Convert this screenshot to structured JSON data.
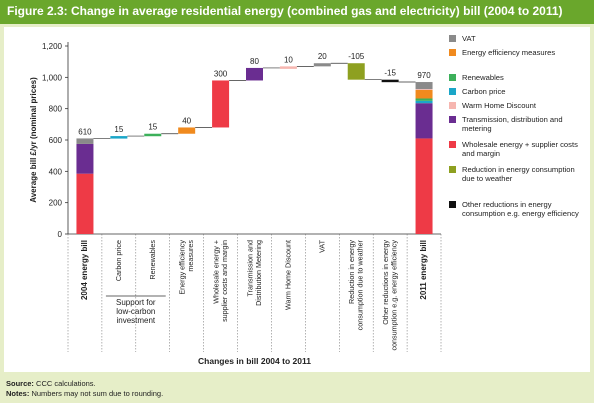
{
  "header": {
    "title": "Figure 2.3: Change in average residential energy (combined gas and electricity) bill (2004 to 2011)"
  },
  "footer": {
    "source_label": "Source:",
    "source_text": "CCC calculations.",
    "notes_label": "Notes:",
    "notes_text": "Numbers may not sum due to rounding."
  },
  "chart_data": {
    "type": "bar",
    "subtype": "waterfall",
    "ylabel": "Average bill £/yr (nominal prices)",
    "xlabel": "Changes in bill 2004 to 2011",
    "ylim": [
      0,
      1200
    ],
    "yticks": [
      "0",
      "200",
      "400",
      "600",
      "800",
      "1,000",
      "1,200"
    ],
    "group_label": "Support for low-carbon investment",
    "categories": [
      "2004 energy bill",
      "Carbon price",
      "Renewables",
      "Energy efficiency measures",
      "Wholesale energy + supplier costs and margin",
      "Transmission and Distribution Metering",
      "Warm Home Discount",
      "VAT",
      "Reduction in energy consumption due to weather",
      "Other reductions in energy consumption e.g. energy efficiency",
      "2011 energy bill"
    ],
    "value_labels": [
      "610",
      "15",
      "15",
      "40",
      "300",
      "80",
      "10",
      "20",
      "-105",
      "-15",
      "970"
    ],
    "changes": [
      null,
      15,
      15,
      40,
      300,
      80,
      10,
      20,
      -105,
      -15,
      null
    ],
    "change_colors": [
      "",
      "#1aa6c8",
      "#3cb05a",
      "#f08a1e",
      "#ee3a46",
      "#6a2d91",
      "#f6b6b0",
      "#8a8a8a",
      "#8ea020",
      "#111111",
      ""
    ],
    "totals": {
      "2004 energy bill": [
        {
          "component": "Wholesale energy + supplier costs and margin",
          "value": 385
        },
        {
          "component": "Transmission, distribution and metering",
          "value": 190
        },
        {
          "component": "VAT",
          "value": 35
        }
      ],
      "2011 energy bill": [
        {
          "component": "Wholesale energy + supplier costs and margin",
          "value": 610
        },
        {
          "component": "Transmission, distribution and metering",
          "value": 225
        },
        {
          "component": "Carbon price",
          "value": 15
        },
        {
          "component": "Renewables",
          "value": 15
        },
        {
          "component": "Energy efficiency measures",
          "value": 55
        },
        {
          "component": "Warm Home Discount",
          "value": 5
        },
        {
          "component": "VAT",
          "value": 45
        }
      ]
    },
    "legend": [
      {
        "label": "VAT",
        "color": "#8a8a8a"
      },
      {
        "label": "Energy efficiency measures",
        "color": "#f08a1e"
      },
      {
        "label": "Renewables",
        "color": "#3cb05a"
      },
      {
        "label": "Carbon price",
        "color": "#1aa6c8"
      },
      {
        "label": "Warm Home Discount",
        "color": "#f6b6b0"
      },
      {
        "label": "Transmission, distribution and metering",
        "color": "#6a2d91"
      },
      {
        "label": "Wholesale energy + supplier costs and margin",
        "color": "#ee3a46"
      },
      {
        "label": "Reduction in energy consumption due to weather",
        "color": "#8ea020"
      },
      {
        "label": "Other reductions in energy consumption e.g. energy efficiency",
        "color": "#111111"
      }
    ],
    "legend_placement": "right",
    "grid": false
  }
}
